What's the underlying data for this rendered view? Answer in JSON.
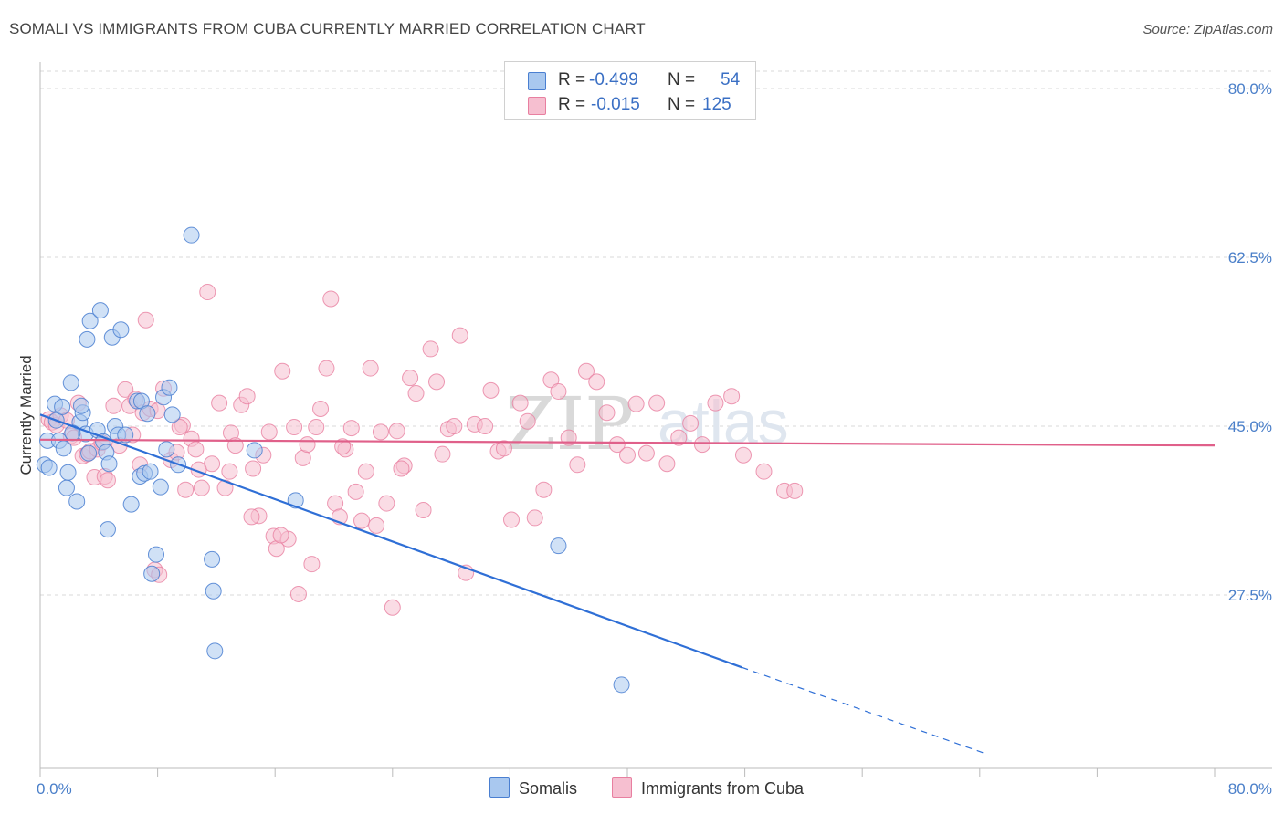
{
  "title": "SOMALI VS IMMIGRANTS FROM CUBA CURRENTLY MARRIED CORRELATION CHART",
  "source": "Source: ZipAtlas.com",
  "watermark": {
    "zip": "ZIP",
    "atlas": "atlas"
  },
  "stats": {
    "r_label": "R =",
    "n_label": "N =",
    "rows": [
      {
        "r": "-0.499",
        "n": "54"
      },
      {
        "r": "-0.015",
        "n": "125"
      }
    ]
  },
  "legend": {
    "items": [
      "Somalis",
      "Immigrants from Cuba"
    ]
  },
  "colors": {
    "blue_fill": "#a9c8ef",
    "blue_stroke": "#4a7fd1",
    "blue_line": "#2f6fd6",
    "pink_fill": "#f6bfd0",
    "pink_stroke": "#e87fa0",
    "pink_line": "#e0608a",
    "grid": "#d8d8d8",
    "axis_text": "#4a7fc9"
  },
  "chart_data": {
    "type": "scatter",
    "title": "SOMALI VS IMMIGRANTS FROM CUBA CURRENTLY MARRIED CORRELATION CHART",
    "xlabel": "",
    "ylabel": "Currently Married",
    "xlim": [
      0,
      80
    ],
    "ylim": [
      11,
      82
    ],
    "x_tick_labels": [
      "0.0%",
      "80.0%"
    ],
    "y_ticks": [
      27.5,
      45.0,
      62.5,
      80.0
    ],
    "y_tick_labels": [
      "27.5%",
      "45.0%",
      "62.5%",
      "80.0%"
    ],
    "grid": "horizontal dashed",
    "legend_position": "bottom-center",
    "series": [
      {
        "name": "Somalis",
        "r": -0.499,
        "n": 54,
        "trend": {
          "x0": 0.0,
          "y0": 46.2,
          "x1": 47.8,
          "y1": 20.0,
          "dash_to_x": 64.5,
          "dash_to_y": 11.0
        },
        "points": [
          [
            0.3,
            41.0
          ],
          [
            0.5,
            43.5
          ],
          [
            0.6,
            40.7
          ],
          [
            1.0,
            47.3
          ],
          [
            1.1,
            45.6
          ],
          [
            1.3,
            43.5
          ],
          [
            1.5,
            47.0
          ],
          [
            1.6,
            42.7
          ],
          [
            1.8,
            38.6
          ],
          [
            1.9,
            40.2
          ],
          [
            2.1,
            49.5
          ],
          [
            2.5,
            37.2
          ],
          [
            2.7,
            45.4
          ],
          [
            2.9,
            46.4
          ],
          [
            3.1,
            44.2
          ],
          [
            3.2,
            54.0
          ],
          [
            3.3,
            42.2
          ],
          [
            3.4,
            55.9
          ],
          [
            3.9,
            44.6
          ],
          [
            4.1,
            57.0
          ],
          [
            4.3,
            43.4
          ],
          [
            4.5,
            42.3
          ],
          [
            4.6,
            34.3
          ],
          [
            4.7,
            41.1
          ],
          [
            4.9,
            54.2
          ],
          [
            5.1,
            45.0
          ],
          [
            5.3,
            44.1
          ],
          [
            5.5,
            55.0
          ],
          [
            5.8,
            44.1
          ],
          [
            6.2,
            36.9
          ],
          [
            6.6,
            47.6
          ],
          [
            6.8,
            39.8
          ],
          [
            6.9,
            47.6
          ],
          [
            7.1,
            40.1
          ],
          [
            7.3,
            46.3
          ],
          [
            7.5,
            40.3
          ],
          [
            7.6,
            29.7
          ],
          [
            7.9,
            31.7
          ],
          [
            8.2,
            38.7
          ],
          [
            8.4,
            48.0
          ],
          [
            8.6,
            42.6
          ],
          [
            8.8,
            49.0
          ],
          [
            9.0,
            46.2
          ],
          [
            9.4,
            41.0
          ],
          [
            10.3,
            64.8
          ],
          [
            11.7,
            31.2
          ],
          [
            11.8,
            27.9
          ],
          [
            11.9,
            21.7
          ],
          [
            14.6,
            42.5
          ],
          [
            17.4,
            37.3
          ],
          [
            35.3,
            32.6
          ],
          [
            39.6,
            18.2
          ],
          [
            2.2,
            44.3
          ],
          [
            2.8,
            47.1
          ]
        ]
      },
      {
        "name": "Immigrants from Cuba",
        "r": -0.015,
        "n": 125,
        "trend": {
          "x0": 0.0,
          "y0": 43.6,
          "x1": 80.0,
          "y1": 43.0
        },
        "points": [
          [
            0.6,
            45.7
          ],
          [
            0.8,
            45.4
          ],
          [
            1.1,
            45.1
          ],
          [
            1.4,
            46.1
          ],
          [
            1.8,
            45.6
          ],
          [
            2.1,
            44.0
          ],
          [
            2.3,
            43.8
          ],
          [
            2.6,
            47.4
          ],
          [
            2.9,
            41.9
          ],
          [
            3.2,
            42.1
          ],
          [
            3.4,
            42.4
          ],
          [
            3.7,
            39.7
          ],
          [
            3.9,
            42.6
          ],
          [
            4.2,
            43.3
          ],
          [
            4.4,
            39.8
          ],
          [
            4.6,
            39.4
          ],
          [
            5.0,
            47.1
          ],
          [
            5.4,
            43.0
          ],
          [
            5.8,
            48.8
          ],
          [
            6.1,
            47.1
          ],
          [
            6.5,
            47.8
          ],
          [
            6.8,
            41.0
          ],
          [
            7.0,
            46.4
          ],
          [
            7.2,
            56.0
          ],
          [
            7.5,
            46.8
          ],
          [
            7.8,
            30.1
          ],
          [
            8.1,
            29.6
          ],
          [
            8.4,
            48.9
          ],
          [
            8.9,
            41.5
          ],
          [
            9.3,
            42.3
          ],
          [
            9.7,
            45.1
          ],
          [
            9.9,
            38.4
          ],
          [
            10.3,
            43.7
          ],
          [
            10.6,
            42.6
          ],
          [
            11.0,
            38.6
          ],
          [
            11.4,
            58.9
          ],
          [
            11.7,
            41.1
          ],
          [
            12.2,
            47.4
          ],
          [
            12.6,
            38.6
          ],
          [
            13.0,
            44.3
          ],
          [
            13.3,
            43.0
          ],
          [
            13.7,
            47.2
          ],
          [
            14.1,
            48.1
          ],
          [
            14.5,
            40.6
          ],
          [
            14.9,
            35.7
          ],
          [
            15.2,
            42.0
          ],
          [
            15.6,
            44.4
          ],
          [
            15.9,
            33.6
          ],
          [
            16.1,
            32.3
          ],
          [
            16.5,
            50.7
          ],
          [
            16.9,
            33.3
          ],
          [
            17.3,
            44.9
          ],
          [
            17.6,
            27.6
          ],
          [
            17.9,
            41.7
          ],
          [
            18.2,
            43.1
          ],
          [
            18.5,
            30.7
          ],
          [
            18.8,
            44.9
          ],
          [
            19.1,
            46.8
          ],
          [
            19.5,
            51.0
          ],
          [
            19.8,
            58.2
          ],
          [
            20.1,
            37.0
          ],
          [
            20.4,
            35.6
          ],
          [
            20.8,
            42.6
          ],
          [
            21.2,
            44.8
          ],
          [
            21.5,
            38.2
          ],
          [
            21.9,
            35.2
          ],
          [
            22.2,
            40.3
          ],
          [
            22.5,
            51.0
          ],
          [
            22.9,
            34.7
          ],
          [
            23.2,
            44.4
          ],
          [
            23.6,
            37.0
          ],
          [
            24.0,
            26.2
          ],
          [
            24.3,
            44.5
          ],
          [
            24.8,
            40.9
          ],
          [
            25.2,
            50.0
          ],
          [
            25.6,
            48.4
          ],
          [
            26.1,
            36.3
          ],
          [
            26.6,
            53.0
          ],
          [
            27.0,
            49.6
          ],
          [
            27.4,
            42.1
          ],
          [
            27.8,
            44.7
          ],
          [
            28.2,
            45.0
          ],
          [
            28.6,
            54.4
          ],
          [
            29.0,
            29.8
          ],
          [
            29.6,
            45.2
          ],
          [
            30.3,
            45.0
          ],
          [
            30.7,
            48.7
          ],
          [
            31.2,
            42.4
          ],
          [
            31.6,
            42.7
          ],
          [
            32.1,
            35.3
          ],
          [
            32.7,
            47.4
          ],
          [
            33.2,
            45.5
          ],
          [
            33.7,
            35.5
          ],
          [
            34.3,
            38.4
          ],
          [
            34.8,
            49.8
          ],
          [
            35.3,
            48.6
          ],
          [
            36.0,
            43.8
          ],
          [
            36.6,
            41.0
          ],
          [
            37.2,
            50.7
          ],
          [
            37.9,
            49.6
          ],
          [
            38.6,
            46.4
          ],
          [
            39.3,
            43.1
          ],
          [
            40.0,
            42.0
          ],
          [
            40.6,
            47.3
          ],
          [
            41.3,
            42.2
          ],
          [
            42.0,
            47.4
          ],
          [
            42.7,
            41.1
          ],
          [
            43.5,
            43.8
          ],
          [
            44.3,
            45.3
          ],
          [
            45.1,
            43.1
          ],
          [
            46.0,
            47.4
          ],
          [
            47.1,
            48.1
          ],
          [
            47.9,
            42.0
          ],
          [
            49.3,
            40.3
          ],
          [
            50.7,
            38.3
          ],
          [
            51.4,
            38.3
          ],
          [
            8.0,
            46.6
          ],
          [
            12.9,
            40.3
          ],
          [
            16.4,
            33.7
          ],
          [
            10.8,
            40.5
          ],
          [
            6.3,
            44.1
          ],
          [
            24.6,
            40.6
          ],
          [
            20.6,
            42.9
          ],
          [
            14.4,
            35.6
          ],
          [
            9.5,
            44.9
          ]
        ]
      }
    ]
  }
}
